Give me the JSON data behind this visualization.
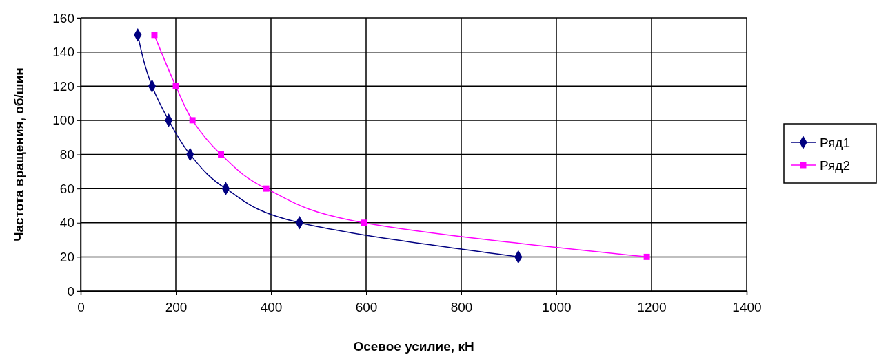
{
  "chart_data": {
    "type": "line",
    "xlabel": "Осевое усилие, кН",
    "ylabel": "Частота вращения, об/шин",
    "xlim": [
      0,
      1400
    ],
    "xticks": [
      0,
      200,
      400,
      600,
      800,
      1000,
      1200,
      1400
    ],
    "ylim": [
      0,
      160
    ],
    "yticks": [
      0,
      20,
      40,
      60,
      80,
      100,
      120,
      140,
      160
    ],
    "grid": true,
    "legend": "right",
    "series": [
      {
        "name": "Ряд1",
        "color": "#000080",
        "marker": "diamond",
        "x": [
          120,
          150,
          185,
          230,
          305,
          460,
          920
        ],
        "values": [
          150,
          120,
          100,
          80,
          60,
          40,
          20
        ]
      },
      {
        "name": "Ряд2",
        "color": "#ff00ff",
        "marker": "square",
        "x": [
          155,
          200,
          235,
          295,
          390,
          595,
          1190
        ],
        "values": [
          150,
          120,
          100,
          80,
          60,
          40,
          20
        ]
      }
    ]
  }
}
